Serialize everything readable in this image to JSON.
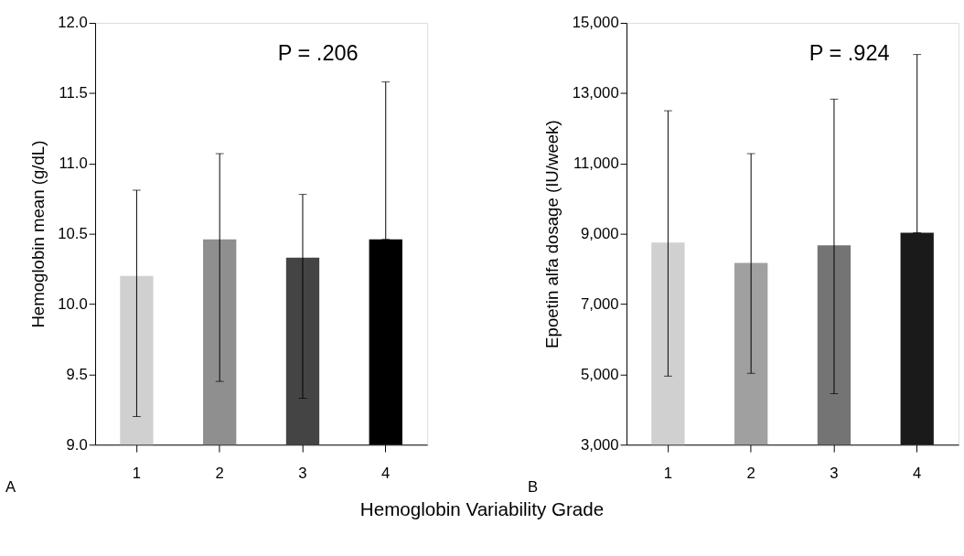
{
  "chart_data": [
    {
      "type": "bar",
      "ylabel": "Hemoglobin mean (g/dL)",
      "xlabel": "Hemoglobin Variability Grade",
      "categories": [
        "1",
        "2",
        "3",
        "4"
      ],
      "values": [
        10.2,
        10.46,
        10.33,
        10.46
      ],
      "colors": [
        "#d0d0d0",
        "#8f8f8f",
        "#444444",
        "#000000"
      ],
      "errors": [
        [
          9.2,
          10.81
        ],
        [
          9.45,
          11.07
        ],
        [
          9.33,
          10.78
        ],
        [
          10.46,
          11.58
        ]
      ],
      "ylim": [
        9.0,
        12.0
      ],
      "yticks": [
        {
          "value": 9.0,
          "label": "9.0"
        },
        {
          "value": 9.5,
          "label": "9.5"
        },
        {
          "value": 10.0,
          "label": "10.0"
        },
        {
          "value": 10.5,
          "label": "10.5"
        },
        {
          "value": 11.0,
          "label": "11.0"
        },
        {
          "value": 11.5,
          "label": "11.5"
        },
        {
          "value": 12.0,
          "label": "12.0"
        }
      ],
      "grid": false,
      "legend": false,
      "annotations": [
        "P = .206",
        "A"
      ]
    },
    {
      "type": "bar",
      "ylabel": "Epoetin alfa dosage  (IU/week)",
      "categories": [
        "1",
        "2",
        "3",
        "4"
      ],
      "values": [
        8750,
        8170,
        8670,
        9030
      ],
      "colors": [
        "#d0d0d0",
        "#a0a0a0",
        "#747474",
        "#1a1a1a"
      ],
      "errors": [
        [
          4950,
          12500
        ],
        [
          5030,
          11280
        ],
        [
          4450,
          12830
        ],
        [
          9030,
          14100
        ]
      ],
      "ylim": [
        3000,
        15000
      ],
      "yticks": [
        {
          "value": 3000,
          "label": "3,000"
        },
        {
          "value": 5000,
          "label": "5,000"
        },
        {
          "value": 7000,
          "label": "7,000"
        },
        {
          "value": 9000,
          "label": "9,000"
        },
        {
          "value": 11000,
          "label": "11,000"
        },
        {
          "value": 13000,
          "label": "13,000"
        },
        {
          "value": 15000,
          "label": "15,000"
        }
      ],
      "grid": false,
      "legend": false,
      "annotations": [
        "P = .924",
        "B"
      ]
    }
  ]
}
